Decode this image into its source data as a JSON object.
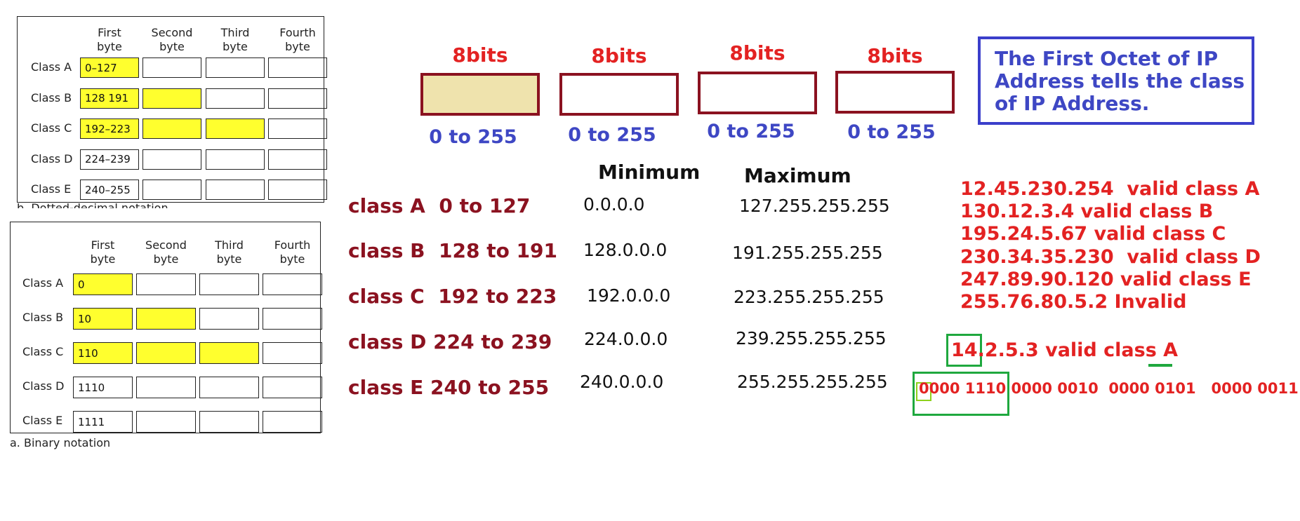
{
  "dotted_table": {
    "headers": [
      "First\nbyte",
      "Second\nbyte",
      "Third\nbyte",
      "Fourth\nbyte"
    ],
    "rows": [
      {
        "label": "Class A",
        "first": "0–127",
        "filled": 1
      },
      {
        "label": "Class B",
        "first": "128  191",
        "filled": 2
      },
      {
        "label": "Class C",
        "first": "192–223",
        "filled": 3
      },
      {
        "label": "Class D",
        "first": "224–239",
        "filled": 0
      },
      {
        "label": "Class E",
        "first": "240–255",
        "filled": 0
      }
    ],
    "caption_partial": "b. Dotted-decimal notation"
  },
  "binary_table": {
    "headers": [
      "First\nbyte",
      "Second\nbyte",
      "Third\nbyte",
      "Fourth\nbyte"
    ],
    "rows": [
      {
        "label": "Class A",
        "first": "0",
        "filled": 1
      },
      {
        "label": "Class B",
        "first": "10",
        "filled": 2
      },
      {
        "label": "Class C",
        "first": "110",
        "filled": 3
      },
      {
        "label": "Class D",
        "first": "1110",
        "filled": 0
      },
      {
        "label": "Class E",
        "first": "1111",
        "filled": 0
      }
    ],
    "caption": "a. Binary notation"
  },
  "octets": [
    {
      "bits": "8bits",
      "range": "0 to 255"
    },
    {
      "bits": "8bits",
      "range": "0 to 255"
    },
    {
      "bits": "8bits",
      "range": "0 to 255"
    },
    {
      "bits": "8bits",
      "range": "0 to 255"
    }
  ],
  "note": "The First Octet of IP Address tells the class of IP Address.",
  "ranges": {
    "min_header": "Minimum",
    "max_header": "Maximum",
    "rows": [
      {
        "cls": "class A  0 to 127",
        "min": "0.0.0.0",
        "max": "127.255.255.255"
      },
      {
        "cls": "class B  128 to 191",
        "min": "128.0.0.0",
        "max": "191.255.255.255"
      },
      {
        "cls": "class C  192 to 223",
        "min": "192.0.0.0",
        "max": "223.255.255.255"
      },
      {
        "cls": "class D 224 to 239",
        "min": "224.0.0.0",
        "max": "239.255.255.255"
      },
      {
        "cls": "class E 240 to 255",
        "min": "240.0.0.0",
        "max": "255.255.255.255"
      }
    ]
  },
  "examples": [
    "12.45.230.254  valid class A",
    "130.12.3.4 valid class B",
    "195.24.5.67 valid class C",
    "230.34.35.230  valid class D",
    "247.89.90.120 valid class E",
    "255.76.80.5.2 Invalid"
  ],
  "highlight_example": "14.2.5.3 valid class A",
  "binary_example": "0000 1110 0000 0010  0000 0101   0000 0011",
  "colors": {
    "maroon": "#8b1220",
    "red": "#e32222",
    "blue": "#3e47c4",
    "green": "#1fa83e",
    "yellow": "#ffff2e",
    "tan": "#efe3ad"
  }
}
